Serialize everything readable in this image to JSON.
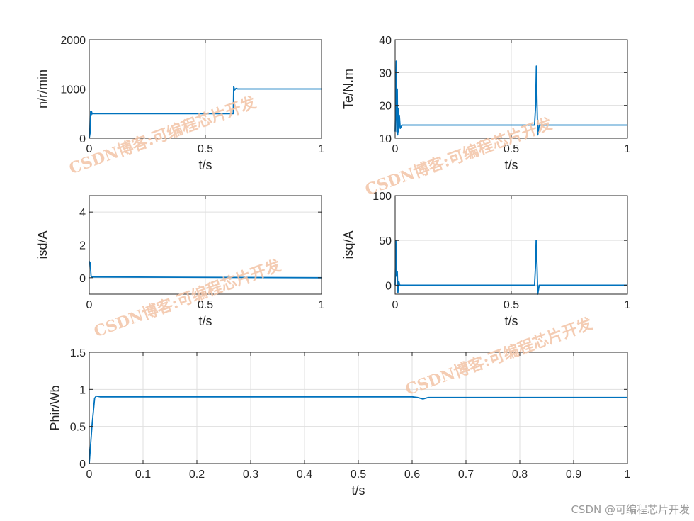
{
  "chart_data": [
    {
      "type": "line",
      "xlabel": "t/s",
      "ylabel": "n/r/min",
      "xlim": [
        0,
        1
      ],
      "ylim": [
        0,
        2000
      ],
      "xticks": [
        0,
        0.5,
        1
      ],
      "xtick_labels": [
        "0",
        "0.5",
        "1"
      ],
      "yticks": [
        0,
        1000,
        2000
      ],
      "ytick_labels": [
        "0",
        "1000",
        "2000"
      ],
      "grid": true,
      "color": "#0072bd",
      "series": [
        {
          "x": [
            0,
            0.004,
            0.006,
            0.008,
            0.01,
            0.012,
            0.016,
            0.02,
            0.6,
            0.62,
            0.622,
            0.626,
            0.632,
            0.64,
            1.0
          ],
          "y": [
            0,
            120,
            550,
            470,
            540,
            490,
            510,
            500,
            500,
            500,
            1050,
            980,
            1010,
            1000,
            1000
          ]
        }
      ]
    },
    {
      "type": "line",
      "xlabel": "t/s",
      "ylabel": "Te/N.m",
      "xlim": [
        0,
        1
      ],
      "ylim": [
        10,
        40
      ],
      "xticks": [
        0,
        0.5,
        1
      ],
      "xtick_labels": [
        "0",
        "0.5",
        "1"
      ],
      "yticks": [
        10,
        20,
        30,
        40
      ],
      "ytick_labels": [
        "10",
        "20",
        "30",
        "40"
      ],
      "grid": true,
      "color": "#0072bd",
      "series": [
        {
          "x": [
            0,
            0.003,
            0.005,
            0.007,
            0.009,
            0.011,
            0.013,
            0.015,
            0.018,
            0.022,
            0.03,
            0.45,
            0.6,
            0.605,
            0.608,
            0.611,
            0.614,
            0.62,
            1.0
          ],
          "y": [
            12,
            22,
            33.5,
            12,
            25,
            11,
            19,
            12,
            17,
            13,
            14,
            14,
            14,
            20,
            32,
            20,
            11,
            14,
            14
          ]
        }
      ]
    },
    {
      "type": "line",
      "xlabel": "t/s",
      "ylabel": "isd/A",
      "xlim": [
        0,
        1
      ],
      "ylim": [
        -1,
        5
      ],
      "xticks": [
        0,
        0.5,
        1
      ],
      "xtick_labels": [
        "0",
        "0.5",
        "1"
      ],
      "yticks": [
        0,
        2,
        4
      ],
      "ytick_labels": [
        "0",
        "2",
        "4"
      ],
      "grid": true,
      "color": "#0072bd",
      "series": [
        {
          "x": [
            0,
            0.004,
            0.008,
            0.012,
            1.0
          ],
          "y": [
            1.0,
            0.9,
            0.1,
            0.05,
            0.0
          ]
        }
      ]
    },
    {
      "type": "line",
      "xlabel": "t/s",
      "ylabel": "isq/A",
      "xlim": [
        0,
        1
      ],
      "ylim": [
        -10,
        100
      ],
      "xticks": [
        0,
        0.5,
        1
      ],
      "xtick_labels": [
        "0",
        "0.5",
        "1"
      ],
      "yticks": [
        0,
        50,
        100
      ],
      "ytick_labels": [
        "0",
        "50",
        "100"
      ],
      "grid": true,
      "color": "#0072bd",
      "series": [
        {
          "x": [
            0,
            0.003,
            0.006,
            0.009,
            0.012,
            0.016,
            0.02,
            0.6,
            0.604,
            0.607,
            0.611,
            0.614,
            0.62,
            1.0
          ],
          "y": [
            0,
            50,
            10,
            15,
            -8,
            4,
            0,
            0,
            20,
            50,
            20,
            -10,
            0,
            0
          ]
        }
      ]
    },
    {
      "type": "line",
      "xlabel": "t/s",
      "ylabel": "Phir/Wb",
      "xlim": [
        0,
        1
      ],
      "ylim": [
        0,
        1.5
      ],
      "xticks": [
        0,
        0.1,
        0.2,
        0.3,
        0.4,
        0.5,
        0.6,
        0.7,
        0.8,
        0.9,
        1
      ],
      "xtick_labels": [
        "0",
        "0.1",
        "0.2",
        "0.3",
        "0.4",
        "0.5",
        "0.6",
        "0.7",
        "0.8",
        "0.9",
        "1"
      ],
      "yticks": [
        0,
        0.5,
        1,
        1.5
      ],
      "ytick_labels": [
        "0",
        "0.5",
        "1",
        "1.5"
      ],
      "grid": true,
      "color": "#0072bd",
      "series": [
        {
          "x": [
            0,
            0.005,
            0.01,
            0.013,
            0.02,
            0.6,
            0.61,
            0.62,
            0.63,
            1.0
          ],
          "y": [
            0,
            0.5,
            0.88,
            0.91,
            0.9,
            0.9,
            0.89,
            0.87,
            0.89,
            0.89
          ]
        }
      ]
    }
  ],
  "watermarks": [
    "CSDN博客:可编程芯片开发",
    "CSDN博客:可编程芯片开发",
    "CSDN博客:可编程芯片开发",
    "CSDN博客:可编程芯片开发"
  ],
  "footer": "CSDN @可编程芯片开发"
}
